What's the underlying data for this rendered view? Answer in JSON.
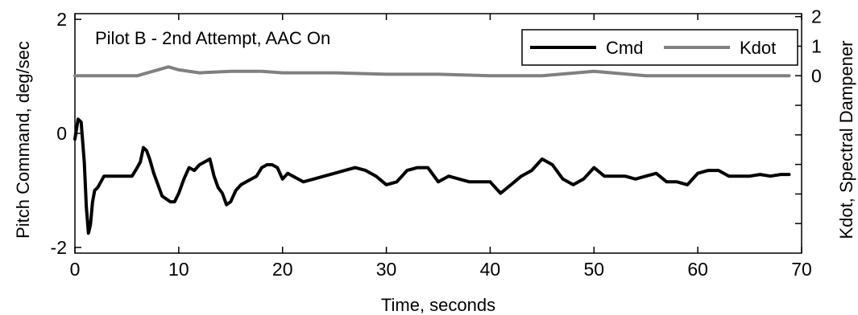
{
  "chart_data": {
    "type": "line",
    "title": "",
    "annotation": "Pilot B - 2nd Attempt, AAC On",
    "xlabel": "Time, seconds",
    "ylabel": "Pitch Command, deg/sec",
    "y2label": "Kdot, Spectral Dampener",
    "xlim": [
      0,
      70
    ],
    "ylim": [
      -2.1,
      2.1
    ],
    "y2lim": [
      -6,
      2.1
    ],
    "xticks": [
      0,
      10,
      20,
      30,
      40,
      50,
      60,
      70
    ],
    "yticks": [
      -2,
      0,
      2
    ],
    "y2ticks": [
      0,
      1,
      2
    ],
    "y2ticks_unlabeled": [
      -1,
      -2,
      -3,
      -4,
      -5
    ],
    "grid": false,
    "legend": "top-right",
    "series": [
      {
        "name": "Cmd",
        "axis": "left",
        "color": "#000000",
        "x": [
          0,
          0.3,
          0.6,
          0.9,
          1.1,
          1.3,
          1.5,
          1.7,
          1.9,
          2.2,
          2.5,
          2.8,
          3.1,
          3.5,
          4,
          4.5,
          5,
          5.5,
          6,
          6.3,
          6.6,
          6.9,
          7.2,
          7.6,
          8,
          8.4,
          8.8,
          9.2,
          9.6,
          10,
          10.5,
          11,
          11.5,
          12,
          12.5,
          13,
          13.4,
          13.8,
          14.2,
          14.6,
          15,
          15.5,
          16,
          16.5,
          17,
          17.5,
          18,
          18.5,
          19,
          19.5,
          20,
          20.5,
          21,
          22,
          23,
          24,
          25,
          26,
          27,
          28,
          29,
          30,
          31,
          32,
          33,
          34,
          35,
          36,
          37,
          38,
          39,
          40,
          41,
          42,
          43,
          44,
          45,
          46,
          47,
          48,
          49,
          50,
          51,
          52,
          53,
          54,
          55,
          56,
          57,
          58,
          59,
          60,
          61,
          62,
          63,
          64,
          65,
          66,
          67,
          68,
          68.8
        ],
        "values": [
          -0.1,
          0.25,
          0.2,
          -0.5,
          -1.3,
          -1.75,
          -1.6,
          -1.2,
          -1.0,
          -0.95,
          -0.85,
          -0.75,
          -0.75,
          -0.75,
          -0.75,
          -0.75,
          -0.75,
          -0.75,
          -0.6,
          -0.5,
          -0.25,
          -0.3,
          -0.45,
          -0.7,
          -0.9,
          -1.1,
          -1.15,
          -1.2,
          -1.2,
          -1.05,
          -0.8,
          -0.6,
          -0.65,
          -0.55,
          -0.5,
          -0.45,
          -0.75,
          -0.95,
          -1.05,
          -1.25,
          -1.2,
          -1.0,
          -0.9,
          -0.85,
          -0.8,
          -0.75,
          -0.6,
          -0.55,
          -0.55,
          -0.6,
          -0.8,
          -0.7,
          -0.75,
          -0.85,
          -0.8,
          -0.75,
          -0.7,
          -0.65,
          -0.6,
          -0.65,
          -0.75,
          -0.9,
          -0.85,
          -0.65,
          -0.6,
          -0.6,
          -0.85,
          -0.75,
          -0.8,
          -0.85,
          -0.85,
          -0.85,
          -1.05,
          -0.9,
          -0.75,
          -0.65,
          -0.45,
          -0.55,
          -0.8,
          -0.9,
          -0.8,
          -0.6,
          -0.75,
          -0.75,
          -0.75,
          -0.8,
          -0.75,
          -0.7,
          -0.85,
          -0.85,
          -0.9,
          -0.7,
          -0.65,
          -0.65,
          -0.75,
          -0.75,
          -0.75,
          -0.72,
          -0.75,
          -0.72,
          -0.72
        ]
      },
      {
        "name": "Kdot",
        "axis": "right",
        "color": "#808080",
        "x": [
          0,
          5,
          6,
          7,
          8,
          9,
          10,
          12,
          15,
          18,
          20,
          25,
          30,
          35,
          40,
          45,
          50,
          55,
          60,
          65,
          68.8
        ],
        "values": [
          0,
          0,
          0,
          0.1,
          0.2,
          0.3,
          0.2,
          0.1,
          0.15,
          0.15,
          0.1,
          0.1,
          0.05,
          0.05,
          0.0,
          0.0,
          0.15,
          0.0,
          0.0,
          0.0,
          0.0
        ]
      }
    ]
  }
}
